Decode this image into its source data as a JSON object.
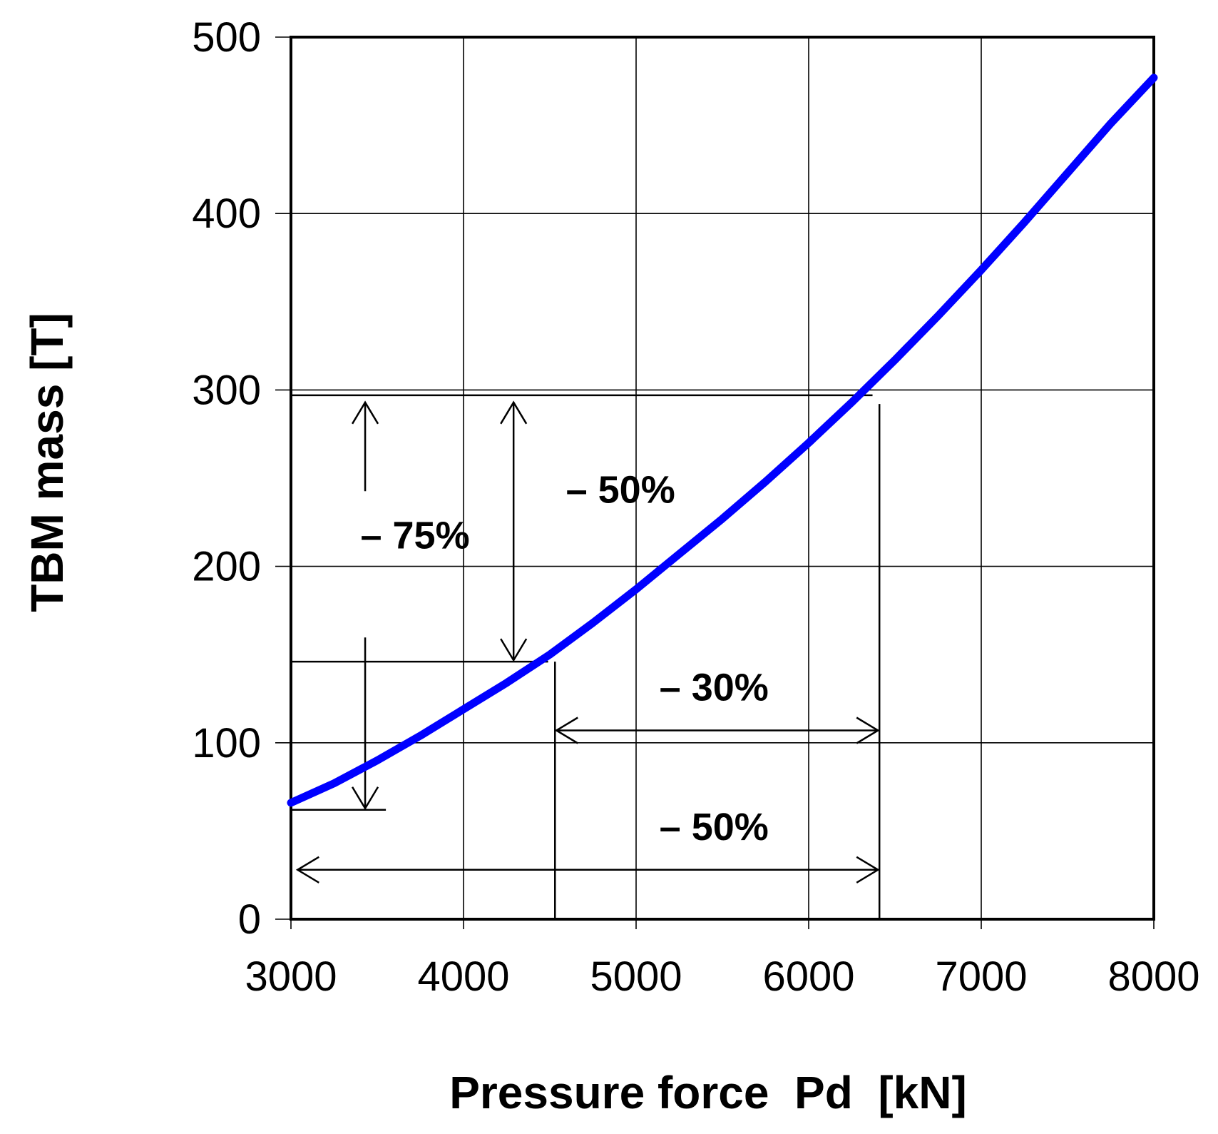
{
  "chart_data": {
    "type": "line",
    "title": "",
    "xlabel": "Pressure force  Pd  [kN]",
    "ylabel": "TBM mass [T]",
    "xlim": [
      3000,
      8000
    ],
    "ylim": [
      0,
      500
    ],
    "x_ticks": [
      3000,
      4000,
      5000,
      6000,
      7000,
      8000
    ],
    "y_ticks": [
      0,
      100,
      200,
      300,
      400,
      500
    ],
    "grid": true,
    "legend": "none",
    "series": [
      {
        "color": "#0000ff",
        "x": [
          3000,
          3250,
          3500,
          3750,
          4000,
          4250,
          4500,
          4750,
          5000,
          5250,
          5500,
          5750,
          6000,
          6250,
          6500,
          6750,
          7000,
          7250,
          7500,
          7750,
          8000
        ],
        "y": [
          66,
          77,
          90,
          104,
          119,
          134,
          150,
          168,
          187,
          207,
          227,
          248,
          270,
          293,
          317,
          342,
          368,
          395,
          423,
          451,
          477
        ]
      }
    ],
    "annotations": [
      {
        "label": "– 75%",
        "kind": "vertical-double-arrow",
        "x": 3430,
        "y_range": [
          62,
          297
        ]
      },
      {
        "label": "– 50%",
        "kind": "vertical-double-arrow",
        "x": 4290,
        "y_range": [
          146,
          297
        ]
      },
      {
        "label": "– 30%",
        "kind": "horizontal-double-arrow",
        "y": 107,
        "x_range": [
          4530,
          6410
        ]
      },
      {
        "label": "– 50%",
        "kind": "horizontal-double-arrow",
        "y": 28,
        "x_range": [
          3030,
          6410
        ]
      }
    ],
    "reference_lines": [
      {
        "kind": "horizontal",
        "y": 297,
        "x_range": [
          3000,
          6370
        ]
      },
      {
        "kind": "horizontal",
        "y": 146,
        "x_range": [
          3000,
          4490
        ]
      },
      {
        "kind": "horizontal",
        "y": 62,
        "x_range": [
          3000,
          3550
        ]
      },
      {
        "kind": "vertical",
        "x": 4530,
        "y_range": [
          0,
          146
        ]
      },
      {
        "kind": "vertical",
        "x": 6410,
        "y_range": [
          0,
          292
        ]
      }
    ]
  }
}
